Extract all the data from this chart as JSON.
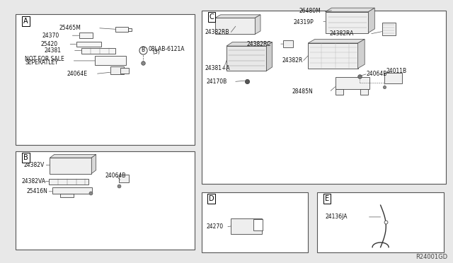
{
  "bg_color": "#e8e8e8",
  "box_edge": "#666666",
  "text_color": "#222222",
  "diagram_id": "R24001GD",
  "fig_w": 6.4,
  "fig_h": 3.72,
  "dpi": 100,
  "boxes": {
    "A": [
      0.035,
      0.055,
      0.395,
      0.495
    ],
    "B": [
      0.035,
      0.575,
      0.395,
      0.375
    ],
    "C": [
      0.445,
      0.04,
      0.54,
      0.66
    ],
    "D": [
      0.445,
      0.73,
      0.235,
      0.23
    ],
    "E": [
      0.7,
      0.73,
      0.28,
      0.23
    ]
  },
  "label_fontsize": 5.5,
  "section_fontsize": 7.0
}
